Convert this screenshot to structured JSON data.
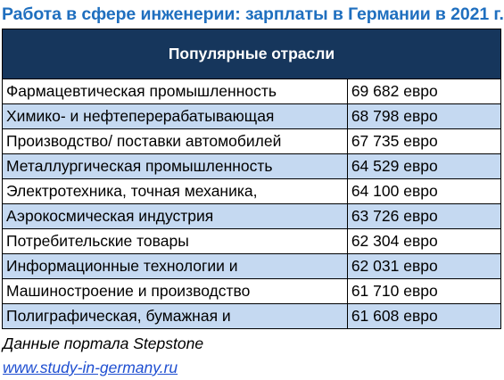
{
  "chart_data": {
    "type": "table",
    "title": "Работа в сфере инженерии: зарплаты в Германии в 2021 г.",
    "header": "Популярные отрасли",
    "rows": [
      {
        "industry": "Фармацевтическая промышленность",
        "salary": "69 682 евро"
      },
      {
        "industry": "Химико- и нефтеперерабатывающая",
        "salary": "68 798 евро"
      },
      {
        "industry": "Производство/ поставки автомобилей",
        "salary": "67 735 евро"
      },
      {
        "industry": "Металлургическая промышленность",
        "salary": "64 529 евро"
      },
      {
        "industry": "Электротехника, точная механика,",
        "salary": "64 100 евро"
      },
      {
        "industry": "Аэрокосмическая индустрия",
        "salary": "63 726 евро"
      },
      {
        "industry": "Потребительские товары",
        "salary": "62 304 евро"
      },
      {
        "industry": "Информационные технологии и",
        "salary": "62 031 евро"
      },
      {
        "industry": "Машиностроение и производство",
        "salary": "61 710 евро"
      },
      {
        "industry": "Полиграфическая, бумажная и",
        "salary": "61 608 евро"
      }
    ],
    "values": [
      69682,
      68798,
      67735,
      64529,
      64100,
      63726,
      62304,
      62031,
      61710,
      61608
    ],
    "source": "Данные портала Stepstone",
    "link": "www.study-in-germany.ru"
  },
  "colors": {
    "title": "#1f6fbf",
    "header_bg": "#16365c",
    "header_text": "#ffffff",
    "row_alt": "#c5d9f1",
    "row_plain": "#ffffff",
    "link": "#1f4fd1"
  }
}
